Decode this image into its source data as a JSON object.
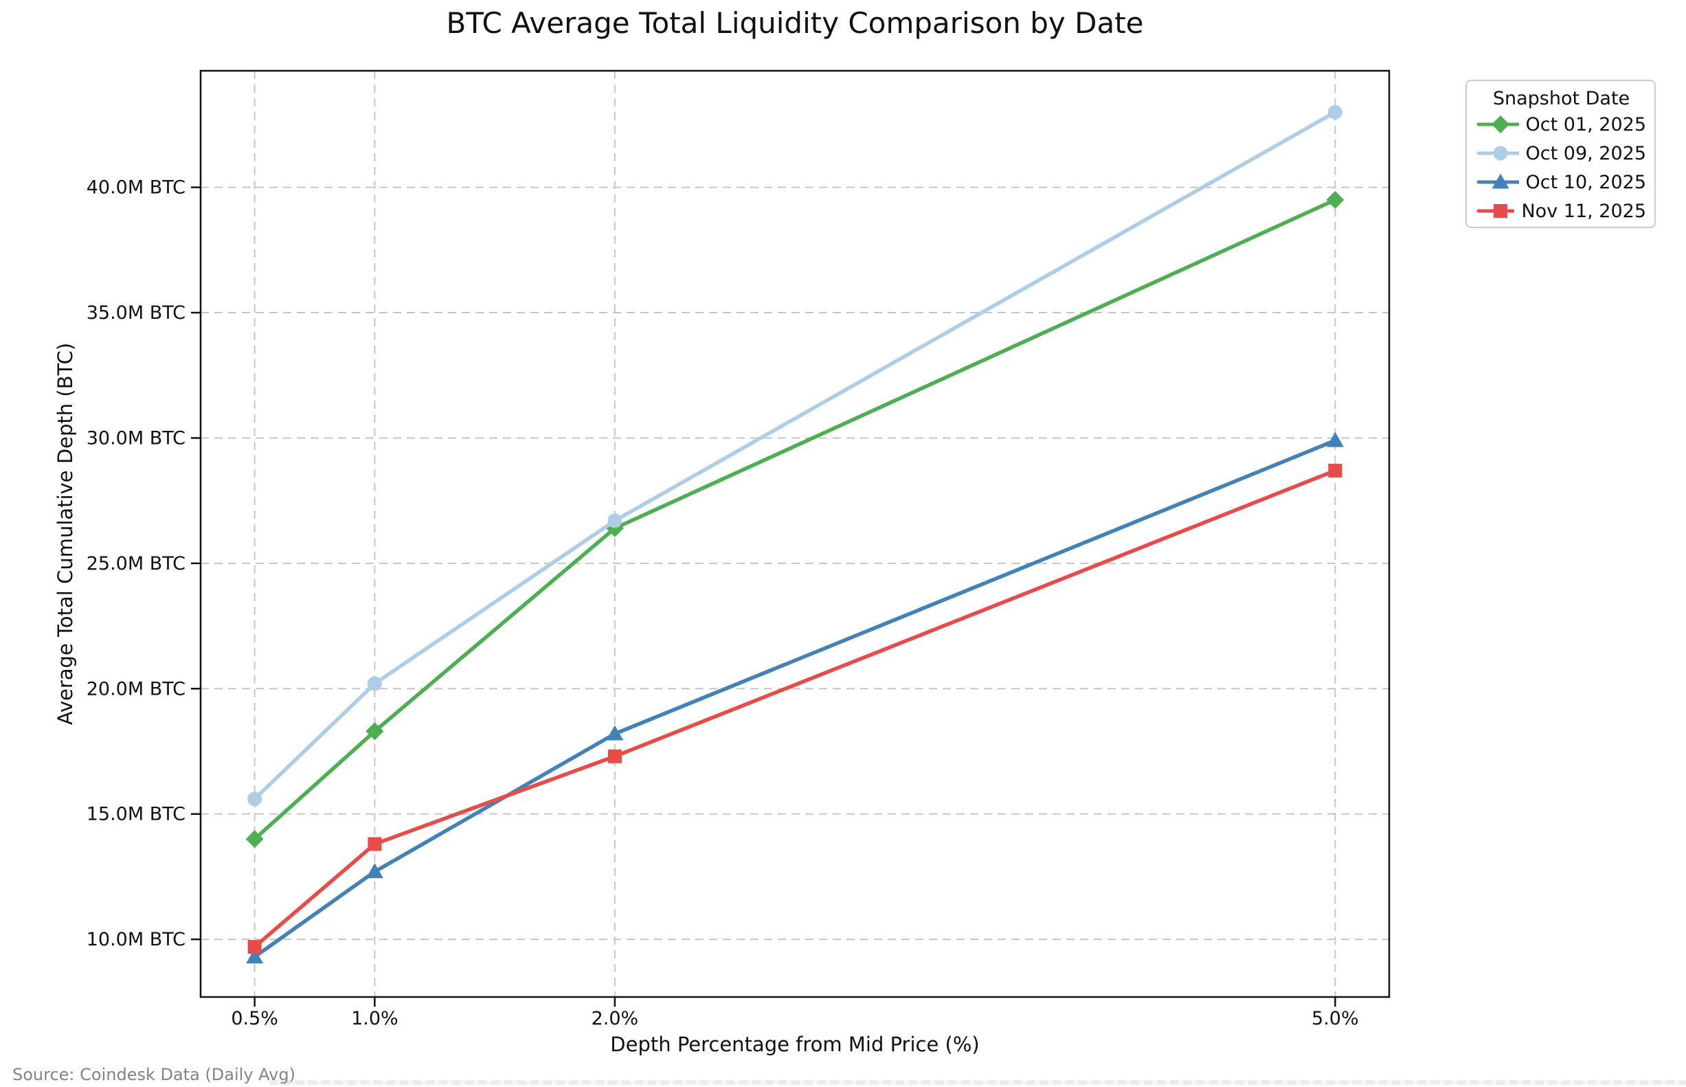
{
  "source_note": "Source: Coindesk Data (Daily Avg)",
  "chart_data": {
    "type": "line",
    "title": "BTC Average Total Liquidity Comparison by Date",
    "xlabel": "Depth Percentage from Mid Price (%)",
    "ylabel": "Average Total Cumulative Depth (BTC)",
    "units": "M BTC",
    "x": [
      0.5,
      1.0,
      2.0,
      5.0
    ],
    "x_tick_labels": [
      "0.5%",
      "1.0%",
      "2.0%",
      "5.0%"
    ],
    "y_ticks": [
      10,
      15,
      20,
      25,
      30,
      35,
      40
    ],
    "y_tick_labels": [
      "10.0M BTC",
      "15.0M BTC",
      "20.0M BTC",
      "25.0M BTC",
      "30.0M BTC",
      "35.0M BTC",
      "40.0M BTC"
    ],
    "xlim": [
      0.275,
      5.225
    ],
    "ylim": [
      7.7,
      44.65
    ],
    "grid": true,
    "grid_style": "dashed",
    "grid_color": "#c6c6c6",
    "legend": {
      "title": "Snapshot Date",
      "position": "outside-top-right"
    },
    "series": [
      {
        "name": "Oct 01, 2025",
        "color": "#4caf50",
        "marker": "diamond",
        "values": [
          14.0,
          18.3,
          26.4,
          39.5
        ]
      },
      {
        "name": "Oct 09, 2025",
        "color": "#aecde6",
        "marker": "circle",
        "values": [
          15.6,
          20.2,
          26.7,
          43.0
        ]
      },
      {
        "name": "Oct 10, 2025",
        "color": "#4182b9",
        "marker": "triangle",
        "values": [
          9.3,
          12.7,
          18.2,
          29.9
        ]
      },
      {
        "name": "Nov 11, 2025",
        "color": "#e74c48",
        "marker": "square",
        "values": [
          9.7,
          13.8,
          17.3,
          28.7
        ]
      }
    ]
  }
}
